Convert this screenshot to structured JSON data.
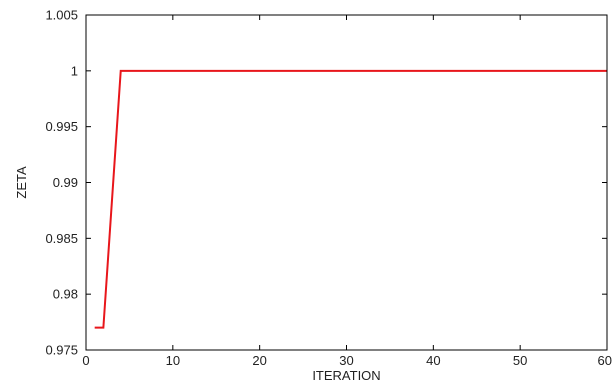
{
  "chart_data": {
    "type": "line",
    "title": "",
    "xlabel": "ITERATION",
    "ylabel": "ZETA",
    "xlim": [
      0,
      60
    ],
    "ylim": [
      0.975,
      1.005
    ],
    "xticks": [
      0,
      10,
      20,
      30,
      40,
      50,
      60
    ],
    "yticks": [
      0.975,
      0.98,
      0.985,
      0.99,
      0.995,
      1,
      1.005
    ],
    "xtick_labels": [
      "0",
      "10",
      "20",
      "30",
      "40",
      "50",
      "60"
    ],
    "ytick_labels": [
      "0.975",
      "0.98",
      "0.985",
      "0.99",
      "0.995",
      "1",
      "1.005"
    ],
    "grid": false,
    "series": [
      {
        "color": "#e8161b",
        "x": [
          1,
          2,
          4,
          60
        ],
        "y": [
          0.977,
          0.977,
          1.0,
          1.0
        ]
      }
    ]
  }
}
